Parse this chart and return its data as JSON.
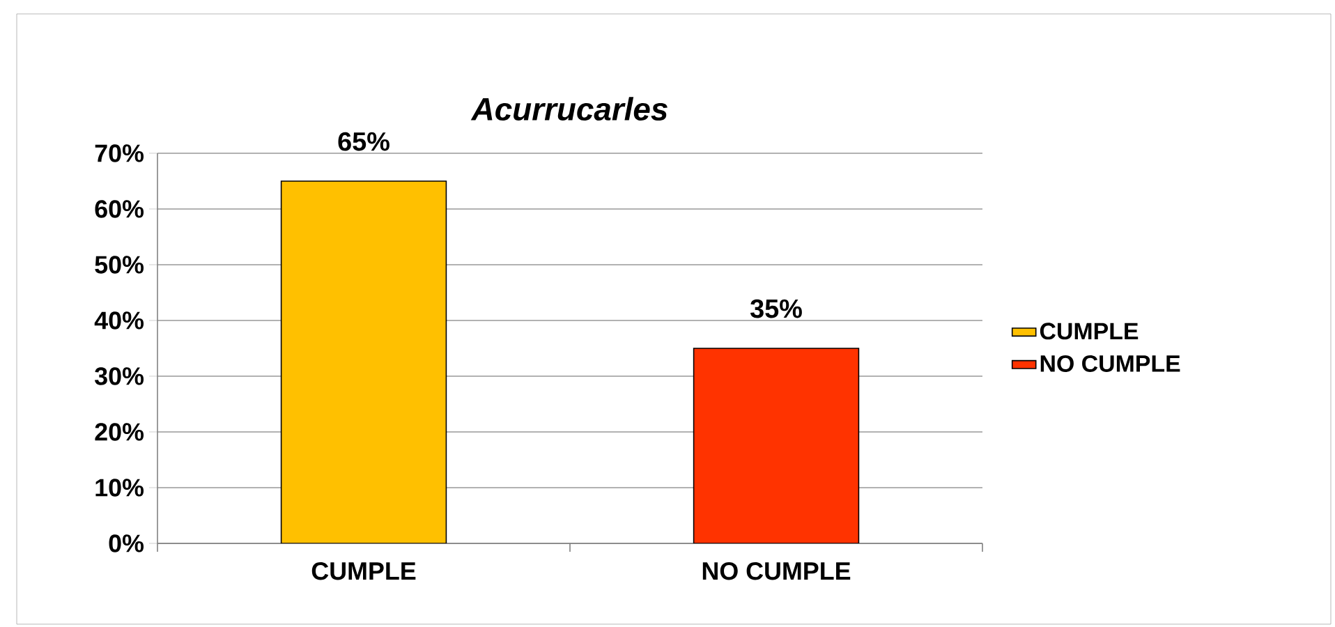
{
  "chart_data": {
    "type": "bar",
    "title": "*Acurrucarles*",
    "categories": [
      "CUMPLE",
      "NO CUMPLE"
    ],
    "series": [
      {
        "name": "CUMPLE",
        "color": "#ffc000",
        "values": [
          65,
          null
        ],
        "value_labels": [
          "65%",
          null
        ]
      },
      {
        "name": "NO CUMPLE",
        "color": "#ff3300",
        "values": [
          null,
          35
        ],
        "value_labels": [
          null,
          "35%"
        ]
      }
    ],
    "ylim": [
      0,
      70
    ],
    "yticks": [
      {
        "value": 0,
        "label": "0%"
      },
      {
        "value": 10,
        "label": "10%"
      },
      {
        "value": 20,
        "label": "20%"
      },
      {
        "value": 30,
        "label": "30%"
      },
      {
        "value": 40,
        "label": "40%"
      },
      {
        "value": 50,
        "label": "50%"
      },
      {
        "value": 60,
        "label": "60%"
      },
      {
        "value": 70,
        "label": "70%"
      }
    ],
    "grid": "y",
    "legend": "right"
  }
}
